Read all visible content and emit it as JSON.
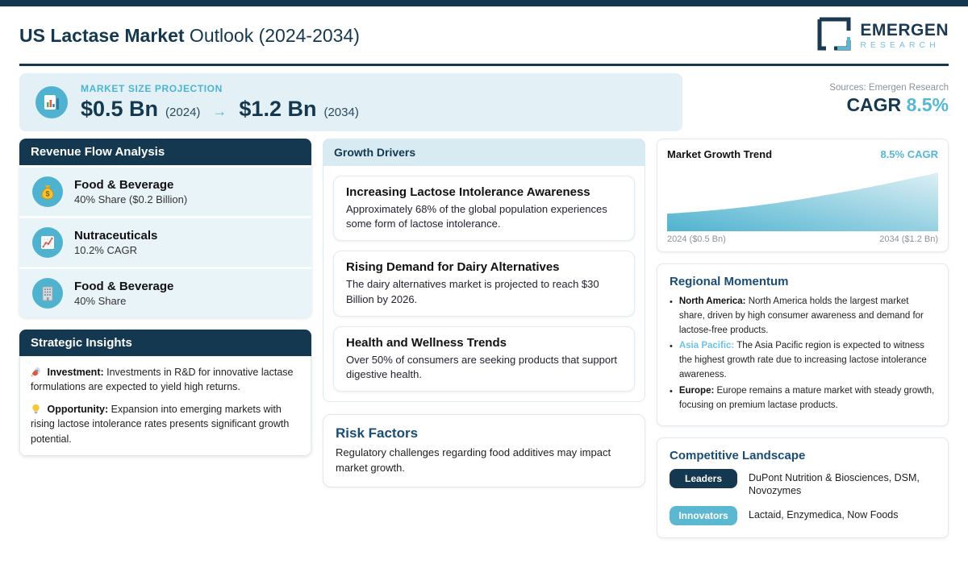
{
  "colors": {
    "navy": "#14384f",
    "teal": "#4fb3cf",
    "teal_text": "#56b8d6",
    "light_teal": "#6ec4e2",
    "banner_bg": "#e3f1f6",
    "row_bg": "#e9f4f8",
    "header_light_bg": "#d8eaf2"
  },
  "header": {
    "title_bold": "US Lactase Market",
    "title_rest": " Outlook (2024-2034)",
    "logo_line1": "EMERGEN",
    "logo_line2": "RESEARCH"
  },
  "banner": {
    "label": "MARKET SIZE PROJECTION",
    "start_value": "$0.5 Bn",
    "start_year": "(2024)",
    "arrow": "→",
    "end_value": "$1.2 Bn",
    "end_year": "(2034)",
    "icon": "bar-chart-icon"
  },
  "side_stats": {
    "sources": "Sources: Emergen Research",
    "cagr_label": "CAGR",
    "cagr_value": "8.5%"
  },
  "revenue_flow": {
    "title": "Revenue Flow Analysis",
    "items": [
      {
        "icon": "money-bag-icon",
        "title": "Food & Beverage",
        "subtitle": "40% Share ($0.2 Billion)"
      },
      {
        "icon": "chart-increasing-icon",
        "title": "Nutraceuticals",
        "subtitle": "10.2% CAGR"
      },
      {
        "icon": "office-building-icon",
        "title": "Food & Beverage",
        "subtitle": "40% Share"
      }
    ]
  },
  "strategic_insights": {
    "title": "Strategic Insights",
    "items": [
      {
        "icon": "rocket-icon",
        "label": "Investment:",
        "text": " Investments in R&D for innovative lactase formulations are expected to yield high returns."
      },
      {
        "icon": "light-bulb-icon",
        "label": "Opportunity:",
        "text": " Expansion into emerging markets with rising lactose intolerance rates presents significant growth potential."
      }
    ]
  },
  "growth_drivers": {
    "title": "Growth Drivers",
    "cards": [
      {
        "title": "Increasing Lactose Intolerance Awareness",
        "text": "Approximately 68% of the global population experiences some form of lactose intolerance."
      },
      {
        "title": "Rising Demand for Dairy Alternatives",
        "text": "The dairy alternatives market is projected to reach $30 Billion by 2026."
      },
      {
        "title": "Health and Wellness Trends",
        "text": "Over 50% of consumers are seeking products that support digestive health."
      }
    ]
  },
  "risk_factors": {
    "title": "Risk Factors",
    "text": "Regulatory challenges regarding food additives may impact market growth."
  },
  "market_trend": {
    "title": "Market Growth Trend",
    "cagr_label": "8.5% CAGR",
    "x_start": "2024 ($0.5 Bn)",
    "x_end": "2034 ($1.2 Bn)"
  },
  "chart_data": {
    "type": "area",
    "title": "Market Growth Trend",
    "x": [
      2024,
      2025,
      2026,
      2027,
      2028,
      2029,
      2030,
      2031,
      2032,
      2033,
      2034
    ],
    "values": [
      0.5,
      0.53,
      0.57,
      0.62,
      0.68,
      0.75,
      0.83,
      0.91,
      1.0,
      1.1,
      1.2
    ],
    "unit": "USD Billion",
    "cagr": "8.5%",
    "xlabel": "",
    "ylabel": "",
    "ylim": [
      0.2,
      1.3
    ],
    "grid": false,
    "legend": false,
    "tick_labels": [
      "2024 ($0.5 Bn)",
      "2034 ($1.2 Bn)"
    ],
    "annotation": "8.5% CAGR"
  },
  "regional_momentum": {
    "title": "Regional Momentum",
    "items": [
      {
        "region": "North America:",
        "text": " North America holds the largest market share, driven by high consumer awareness and demand for lactose-free products.",
        "highlight": false
      },
      {
        "region": "Asia Pacific:",
        "text": " The Asia Pacific region is expected to witness the highest growth rate due to increasing lactose intolerance awareness.",
        "highlight": true
      },
      {
        "region": "Europe:",
        "text": " Europe remains a mature market with steady growth, focusing on premium lactase products.",
        "highlight": false
      }
    ]
  },
  "competitive_landscape": {
    "title": "Competitive Landscape",
    "rows": [
      {
        "badge": "Leaders",
        "companies": "DuPont Nutrition & Biosciences, DSM, Novozymes"
      },
      {
        "badge": "Innovators",
        "companies": "Lactaid, Enzymedica, Now Foods"
      }
    ]
  }
}
